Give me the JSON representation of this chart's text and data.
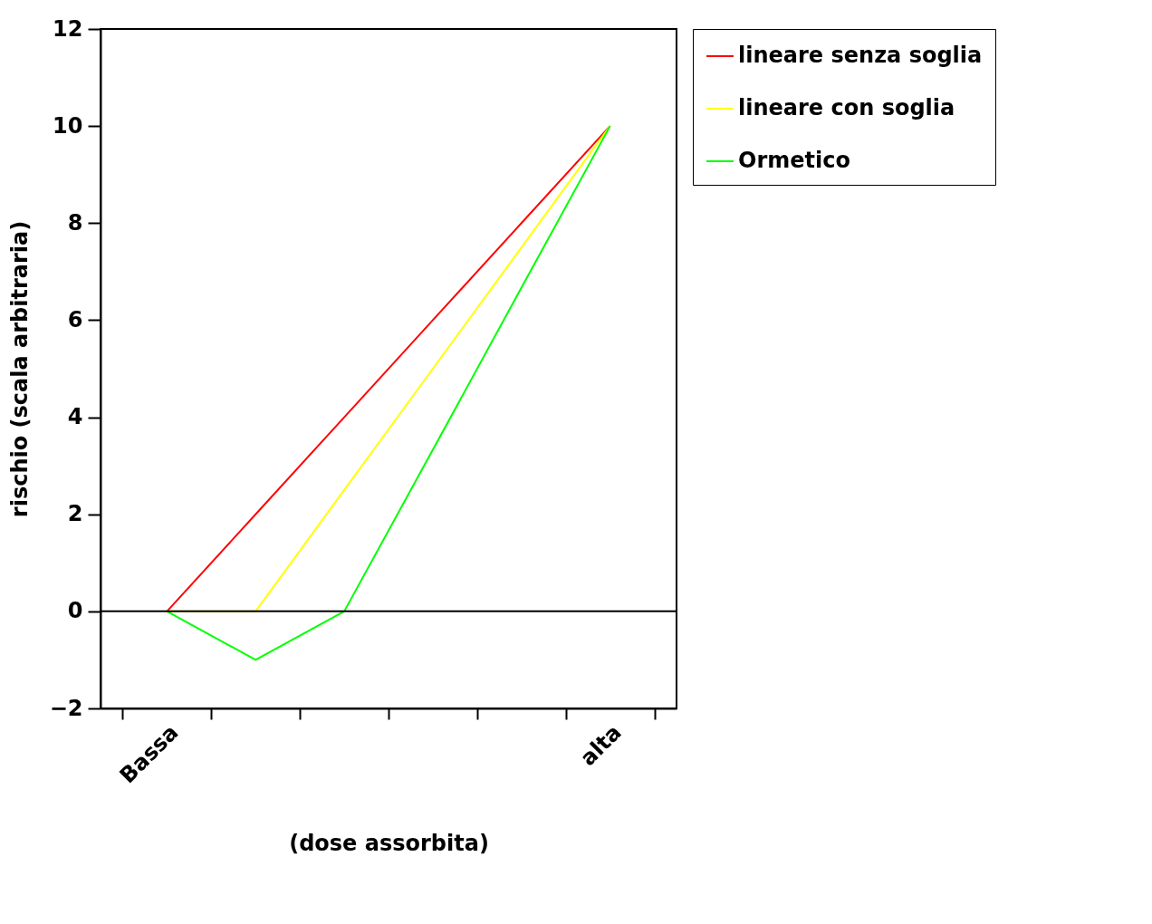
{
  "chart_data": {
    "type": "line",
    "xlabel": "(dose assorbita)",
    "ylabel": "rischio (scala arbitraria)",
    "categories": [
      "Bassa",
      null,
      null,
      null,
      null,
      "alta"
    ],
    "series": [
      {
        "name": "lineare senza soglia",
        "color": "#ff0000",
        "values": [
          0,
          2,
          4,
          6,
          8,
          10
        ]
      },
      {
        "name": "lineare con soglia",
        "color": "#ffff00",
        "values": [
          0,
          0,
          2.5,
          5,
          7.5,
          10
        ]
      },
      {
        "name": "Ormetico",
        "color": "#00ff00",
        "values": [
          0,
          -1,
          0,
          3.33,
          6.67,
          10
        ]
      }
    ],
    "ylim": [
      -2,
      12
    ],
    "yticks": [
      -2,
      0,
      2,
      4,
      6,
      8,
      10,
      12
    ],
    "ref_lines": [
      {
        "axis": "y",
        "value": 0,
        "color": "#000000"
      }
    ],
    "grid": false,
    "legend": "right",
    "marker": "none",
    "line_style": "solid"
  }
}
